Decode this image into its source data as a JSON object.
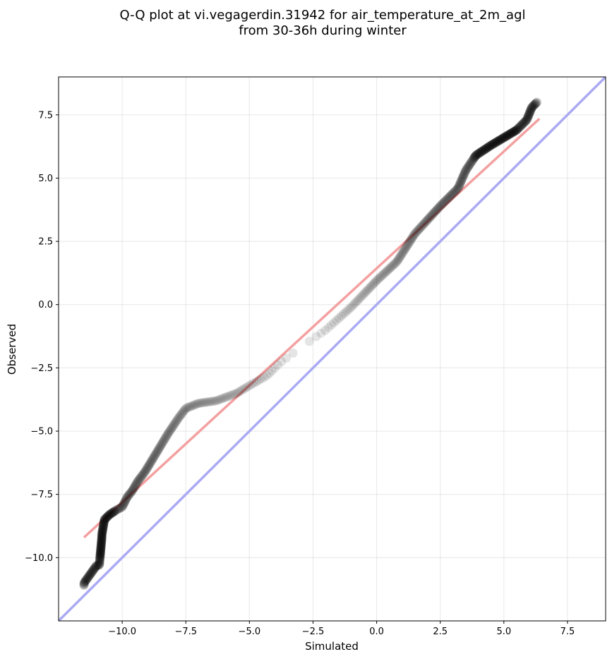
{
  "chart_data": {
    "type": "scatter",
    "title_line1": "Q-Q plot at vi.vegagerdin.31942 for air_temperature_at_2m_agl",
    "title_line2": "from 30-36h during winter",
    "xlabel": "Simulated",
    "ylabel": "Observed",
    "xlim": [
      -12.5,
      9.0
    ],
    "ylim": [
      -12.5,
      9.0
    ],
    "grid": true,
    "x_ticks": [
      -10.0,
      -7.5,
      -5.0,
      -2.5,
      0.0,
      2.5,
      5.0,
      7.5
    ],
    "y_ticks": [
      -10.0,
      -7.5,
      -5.0,
      -2.5,
      0.0,
      2.5,
      5.0,
      7.5
    ],
    "x_tick_labels": [
      "−10.0",
      "−7.5",
      "−5.0",
      "−2.5",
      "0.0",
      "2.5",
      "5.0",
      "7.5"
    ],
    "y_tick_labels": [
      "−10.0",
      "−7.5",
      "−5.0",
      "−2.5",
      "0.0",
      "2.5",
      "5.0",
      "7.5"
    ],
    "points_color": "#000000",
    "fit_line": {
      "color": "#f4a0a0",
      "x": [
        -11.5,
        6.4
      ],
      "y": [
        -9.2,
        7.35
      ]
    },
    "identity_line": {
      "color": "#aaaaf4",
      "x": [
        -12.5,
        9.0
      ],
      "y": [
        -12.5,
        9.0
      ]
    },
    "anchors": [
      [
        -11.5,
        -11.1
      ],
      [
        -11.5,
        -11.0
      ],
      [
        -11.0,
        -10.3
      ],
      [
        -10.9,
        -10.3
      ],
      [
        -10.8,
        -9.2
      ],
      [
        -10.8,
        -9.1
      ],
      [
        -10.7,
        -8.5
      ],
      [
        -10.5,
        -8.3
      ],
      [
        -10.2,
        -8.1
      ],
      [
        -10.0,
        -8.0
      ],
      [
        -9.8,
        -7.6
      ],
      [
        -9.6,
        -7.35
      ],
      [
        -9.4,
        -7.0
      ],
      [
        -9.1,
        -6.6
      ],
      [
        -8.8,
        -6.1
      ],
      [
        -8.5,
        -5.6
      ],
      [
        -8.2,
        -5.1
      ],
      [
        -7.8,
        -4.5
      ],
      [
        -7.5,
        -4.1
      ],
      [
        -7.0,
        -3.9
      ],
      [
        -6.3,
        -3.8
      ],
      [
        -5.5,
        -3.5
      ],
      [
        -5.0,
        -3.2
      ],
      [
        -4.3,
        -2.8
      ],
      [
        -3.8,
        -2.3
      ],
      [
        -3.0,
        -1.7
      ],
      [
        -2.0,
        -1.0
      ],
      [
        -1.0,
        -0.1
      ],
      [
        0.0,
        0.95
      ],
      [
        0.8,
        1.7
      ],
      [
        1.5,
        2.8
      ],
      [
        2.5,
        3.9
      ],
      [
        3.2,
        4.6
      ],
      [
        3.5,
        5.3
      ],
      [
        3.9,
        5.9
      ],
      [
        4.5,
        6.3
      ],
      [
        5.0,
        6.6
      ],
      [
        5.5,
        6.9
      ],
      [
        5.9,
        7.3
      ],
      [
        6.1,
        7.8
      ],
      [
        6.3,
        8.0
      ]
    ],
    "n_points": 620
  }
}
